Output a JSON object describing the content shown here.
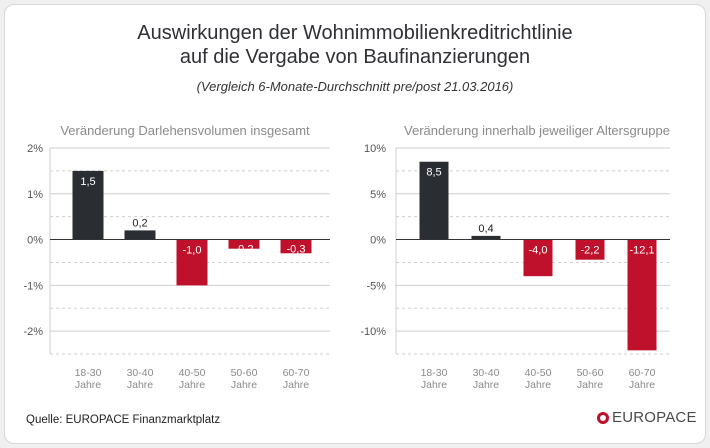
{
  "title_line1": "Auswirkungen der Wohnimmobilienkreditrichtlinie",
  "title_line2": "auf die Vergabe von Baufinanzierungen",
  "subtitle": "(Vergleich 6-Monate-Durchschnitt pre/post 21.03.2016)",
  "source": "Quelle: EUROPACE Finanzmarktplatz",
  "brand": "EUROPACE",
  "colors": {
    "positive": "#2a2e33",
    "negative": "#c0112c",
    "grid": "#cfcfcf",
    "axis": "#333333",
    "brand": "#c0112c"
  },
  "chart_data": [
    {
      "type": "bar",
      "title": "Veränderung Darlehensvolumen insgesamt",
      "categories": [
        "18-30\nJahre",
        "30-40\nJahre",
        "40-50\nJahre",
        "50-60\nJahre",
        "60-70\nJahre"
      ],
      "values": [
        1.5,
        0.2,
        -1.0,
        -0.2,
        -0.3
      ],
      "value_labels": [
        "1,5",
        "0,2",
        "-1,0",
        "-0,2",
        "-0,3"
      ],
      "ylim": [
        -2.5,
        2
      ],
      "yticks": [
        2,
        1,
        0,
        -1,
        -2
      ],
      "ytick_labels": [
        "2%",
        "1%",
        "0%",
        "-1%",
        "-2%"
      ],
      "grid": true
    },
    {
      "type": "bar",
      "title": "Veränderung innerhalb jeweiliger Altersgruppe",
      "categories": [
        "18-30\nJahre",
        "30-40\nJahre",
        "40-50\nJahre",
        "50-60\nJahre",
        "60-70\nJahre"
      ],
      "values": [
        8.5,
        0.4,
        -4.0,
        -2.2,
        -12.1
      ],
      "value_labels": [
        "8,5",
        "0,4",
        "-4,0",
        "-2,2",
        "-12,1"
      ],
      "ylim": [
        -12.5,
        10
      ],
      "yticks": [
        10,
        5,
        0,
        -5,
        -10
      ],
      "ytick_labels": [
        "10%",
        "5%",
        "0%",
        "-5%",
        "-10%"
      ],
      "grid": true
    }
  ]
}
